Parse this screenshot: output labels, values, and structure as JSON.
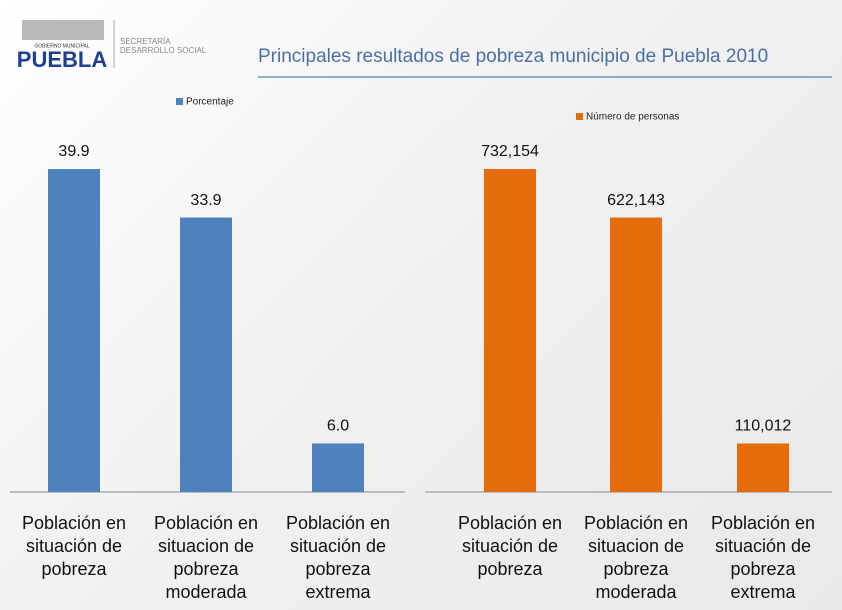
{
  "header": {
    "logo_subtext": "GOBIERNO MUNICIPAL",
    "logo_text": "PUEBLA",
    "department": [
      "SECRETARÍA",
      "DESARROLLO SOCIAL"
    ],
    "title": "Principales resultados de pobreza municipio de Puebla 2010"
  },
  "chart_data": [
    {
      "type": "bar",
      "categories": [
        "Población en situación de pobreza",
        "Población en situacion de pobreza moderada",
        "Población en situación de pobreza extrema"
      ],
      "series": [
        {
          "name": "Porcentaje",
          "color": "#4f81bd",
          "values": [
            39.9,
            33.9,
            6.0
          ],
          "value_labels": [
            "39.9",
            "33.9",
            "6.0"
          ]
        }
      ]
    },
    {
      "type": "bar",
      "categories": [
        "Población en situación de pobreza",
        "Población en situacion de pobreza moderada",
        "Población en situación de pobreza extrema"
      ],
      "series": [
        {
          "name": "Número de personas",
          "color": "#e46c0a",
          "values": [
            732154,
            622143,
            110012
          ],
          "value_labels": [
            "732,154",
            "622,143",
            "110,012"
          ]
        }
      ]
    }
  ]
}
